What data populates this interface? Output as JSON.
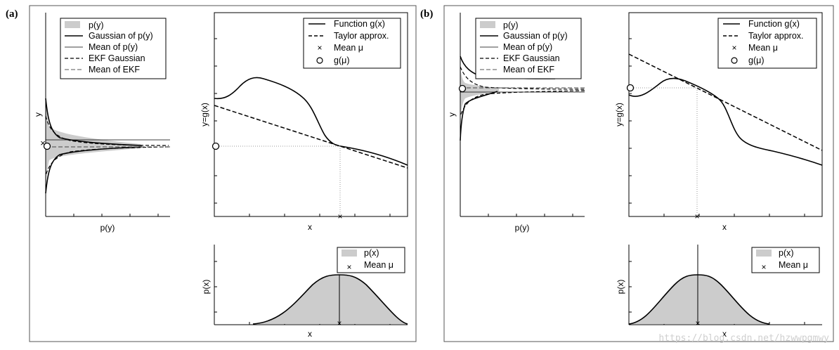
{
  "figure": {
    "watermark": "https://blog.csdn.net/hzwwpgmwy",
    "panels": [
      {
        "label": "(a)",
        "py_plot": {
          "xlabel": "p(y)",
          "ylabel": "y",
          "legend": [
            "p(y)",
            "Gaussian of p(y)",
            "Mean of p(y)",
            "EKF Gaussian",
            "Mean of EKF"
          ]
        },
        "g_plot": {
          "xlabel": "x",
          "ylabel": "y=g(x)",
          "legend": [
            "Function g(x)",
            "Taylor approx.",
            "Mean μ",
            "g(μ)"
          ]
        },
        "px_plot": {
          "xlabel": "x",
          "ylabel": "p(x)",
          "legend": [
            "p(x)",
            "Mean μ"
          ]
        }
      },
      {
        "label": "(b)",
        "py_plot": {
          "xlabel": "p(y)",
          "ylabel": "y",
          "legend": [
            "p(y)",
            "Gaussian of p(y)",
            "Mean of p(y)",
            "EKF Gaussian",
            "Mean of EKF"
          ]
        },
        "g_plot": {
          "xlabel": "x",
          "ylabel": "y=g(x)",
          "legend": [
            "Function g(x)",
            "Taylor approx.",
            "Mean μ",
            "g(μ)"
          ]
        },
        "px_plot": {
          "xlabel": "x",
          "ylabel": "p(x)",
          "legend": [
            "p(x)",
            "Mean μ"
          ]
        }
      }
    ]
  },
  "colors": {
    "frame": "#555555",
    "fill": "#cccccc",
    "line": "#000000",
    "guide": "#999999"
  }
}
